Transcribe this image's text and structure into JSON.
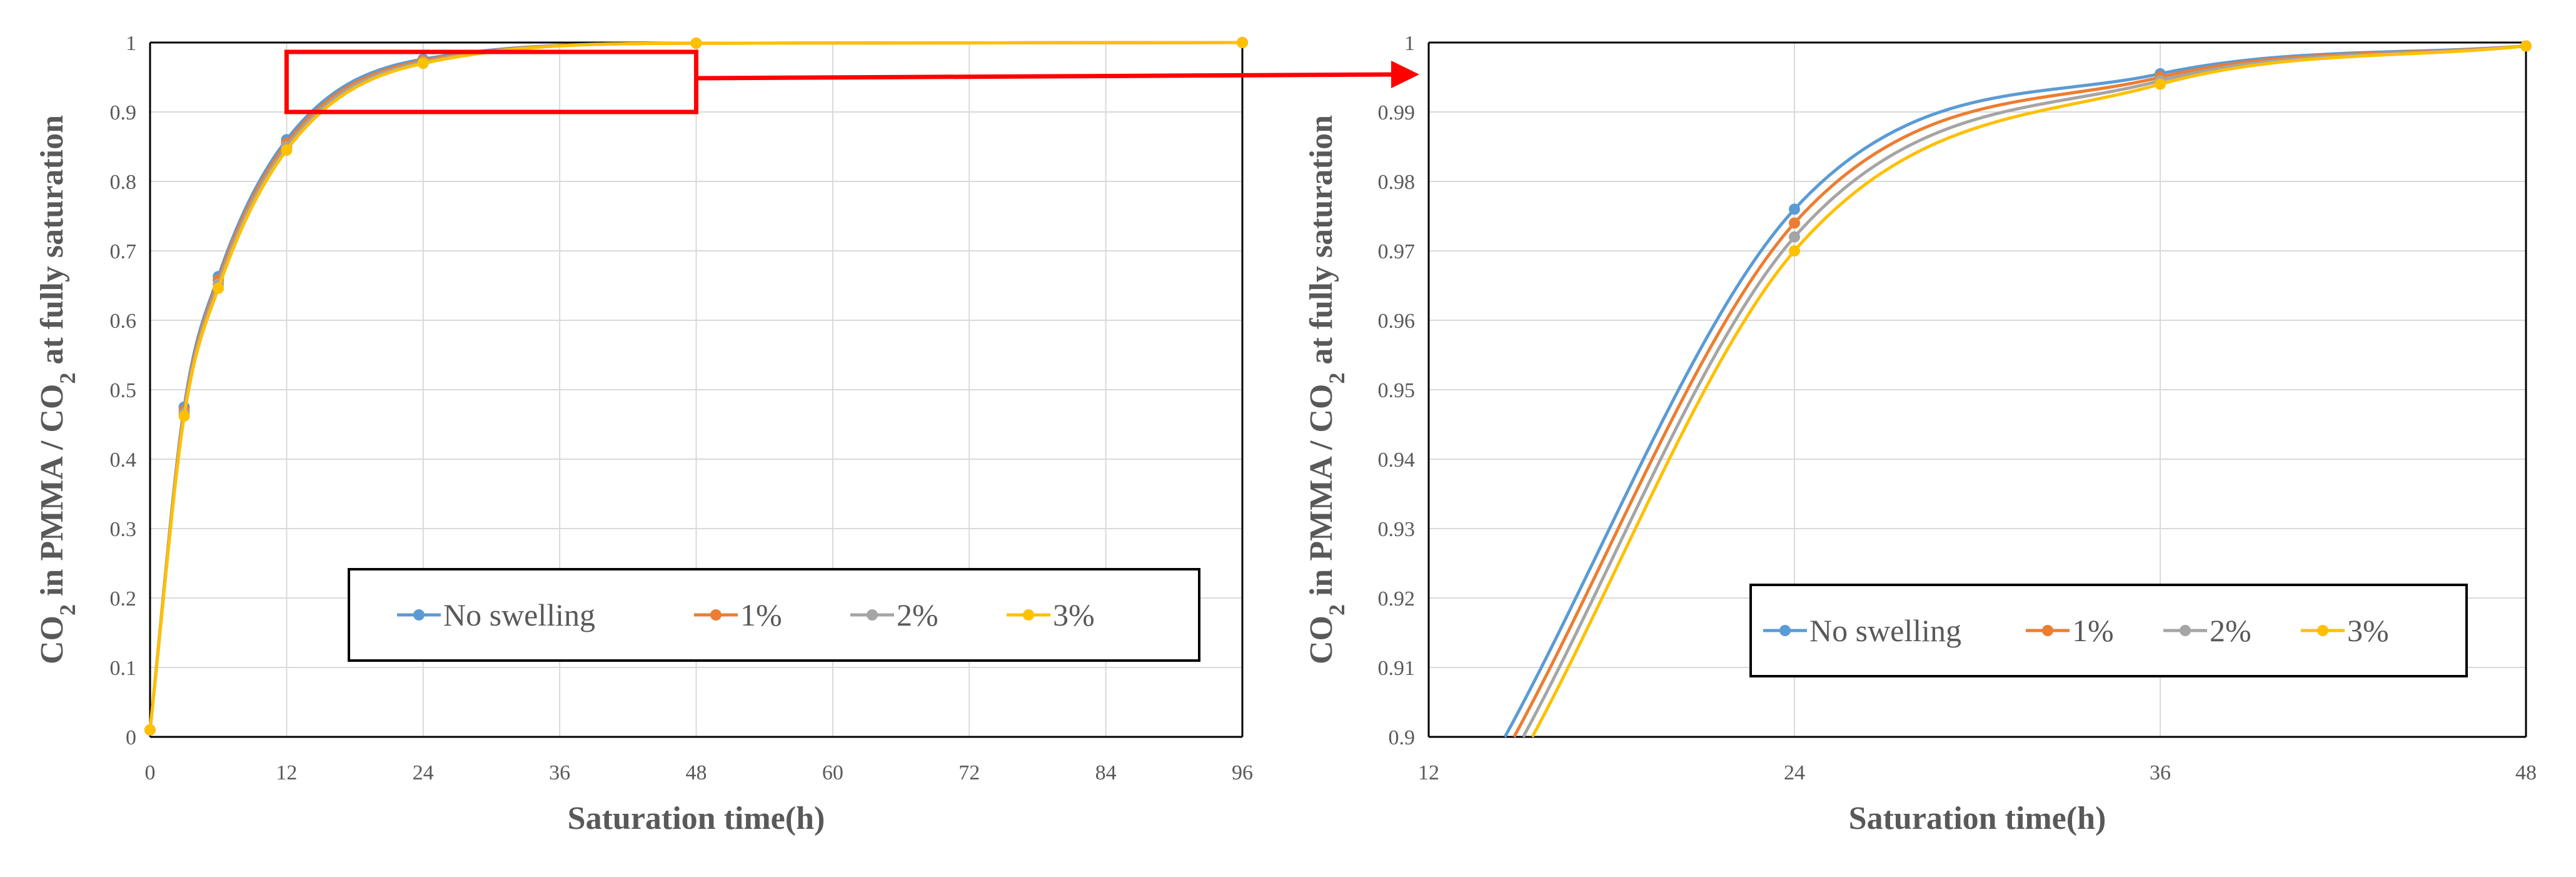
{
  "chart_data": [
    {
      "type": "line",
      "xlabel": "Saturation time(h)",
      "ylabel_parts": [
        "CO",
        "2",
        " in PMMA / CO",
        "2",
        " at fully saturation"
      ],
      "xlim": [
        0,
        96
      ],
      "ylim": [
        0,
        1
      ],
      "xticks": [
        0,
        12,
        24,
        36,
        48,
        60,
        72,
        84,
        96
      ],
      "yticks": [
        0,
        0.1,
        0.2,
        0.3,
        0.4,
        0.5,
        0.6,
        0.7,
        0.8,
        0.9,
        1
      ],
      "grid": true,
      "legend_position": "bottom-center",
      "series": [
        {
          "name": "No swelling",
          "color": "#5b9bd5",
          "x": [
            0,
            3,
            6,
            12,
            24,
            48,
            96
          ],
          "y": [
            0.01,
            0.475,
            0.663,
            0.86,
            0.976,
            0.999,
            1.0
          ]
        },
        {
          "name": "1%",
          "color": "#ed7d31",
          "x": [
            0,
            3,
            6,
            12,
            24,
            48,
            96
          ],
          "y": [
            0.01,
            0.47,
            0.658,
            0.855,
            0.974,
            0.999,
            1.0
          ]
        },
        {
          "name": "2%",
          "color": "#a5a5a5",
          "x": [
            0,
            3,
            6,
            12,
            24,
            48,
            96
          ],
          "y": [
            0.01,
            0.466,
            0.652,
            0.85,
            0.972,
            0.999,
            1.0
          ]
        },
        {
          "name": "3%",
          "color": "#ffc000",
          "x": [
            0,
            3,
            6,
            12,
            24,
            48,
            96
          ],
          "y": [
            0.01,
            0.462,
            0.646,
            0.845,
            0.97,
            0.999,
            1.0
          ]
        }
      ]
    },
    {
      "type": "line",
      "xlabel": "Saturation time(h)",
      "ylabel_parts": [
        "CO",
        "2",
        " in PMMA / CO",
        "2",
        " at fully saturation"
      ],
      "xlim": [
        12,
        48
      ],
      "ylim": [
        0.9,
        1
      ],
      "xticks": [
        12,
        24,
        36,
        48
      ],
      "yticks": [
        0.9,
        0.91,
        0.92,
        0.93,
        0.94,
        0.95,
        0.96,
        0.97,
        0.98,
        0.99,
        1
      ],
      "grid": true,
      "legend_position": "bottom-center",
      "series": [
        {
          "name": "No swelling",
          "color": "#5b9bd5",
          "x": [
            14.5,
            24,
            36,
            48
          ],
          "y": [
            0.9,
            0.976,
            0.9955,
            0.9995
          ]
        },
        {
          "name": "1%",
          "color": "#ed7d31",
          "x": [
            14.8,
            24,
            36,
            48
          ],
          "y": [
            0.9,
            0.974,
            0.995,
            0.9995
          ]
        },
        {
          "name": "2%",
          "color": "#a5a5a5",
          "x": [
            15.1,
            24,
            36,
            48
          ],
          "y": [
            0.9,
            0.972,
            0.9945,
            0.9995
          ]
        },
        {
          "name": "3%",
          "color": "#ffc000",
          "x": [
            15.4,
            24,
            36,
            48
          ],
          "y": [
            0.9,
            0.97,
            0.994,
            0.9995
          ]
        }
      ]
    }
  ],
  "annotation": {
    "color": "#ff0000",
    "zoom_range": {
      "x": [
        12,
        48
      ],
      "y": [
        0.9,
        1
      ]
    }
  }
}
